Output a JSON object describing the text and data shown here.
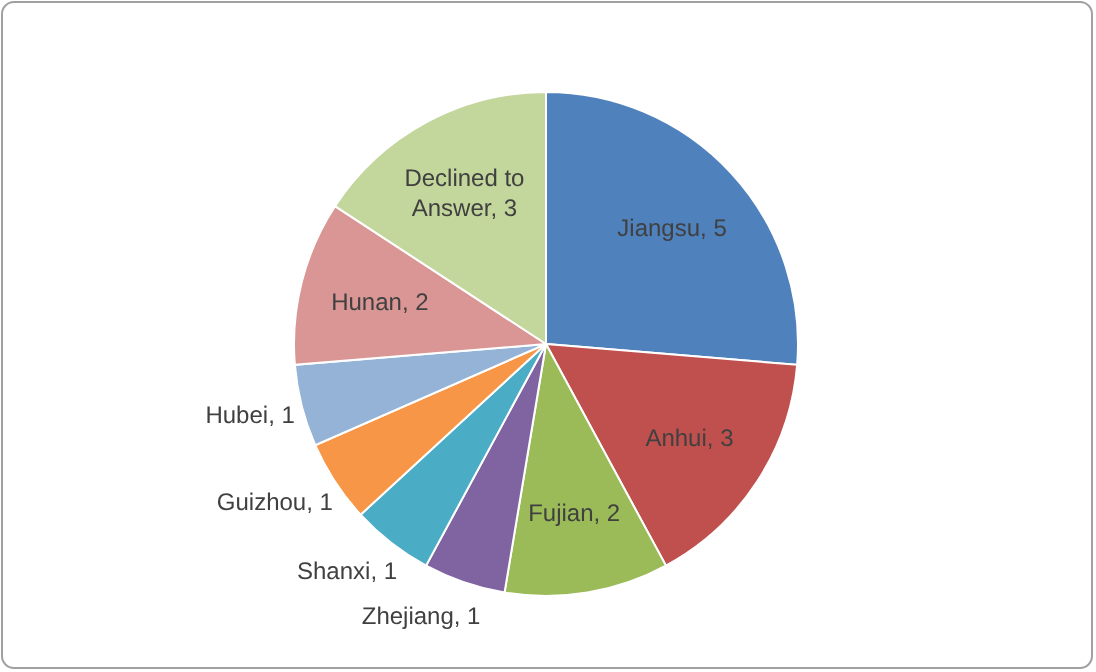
{
  "chart_data": {
    "type": "pie",
    "categories": [
      "Jiangsu",
      "Anhui",
      "Fujian",
      "Zhejiang",
      "Shanxi",
      "Guizhou",
      "Hubei",
      "Hunan",
      "Declined to Answer"
    ],
    "values": [
      5,
      3,
      2,
      1,
      1,
      1,
      1,
      2,
      3
    ],
    "value_labels": [
      ", 5",
      ", 3",
      ", 2",
      ", 1",
      ", 1",
      ", 1",
      ", 1",
      ", 2",
      ", 3"
    ],
    "colors": [
      "#4f81bd",
      "#c0504d",
      "#9bbb59",
      "#8064a2",
      "#4bacc6",
      "#f79646",
      "#95b3d7",
      "#d99694",
      "#c3d69b"
    ],
    "legend": false
  }
}
